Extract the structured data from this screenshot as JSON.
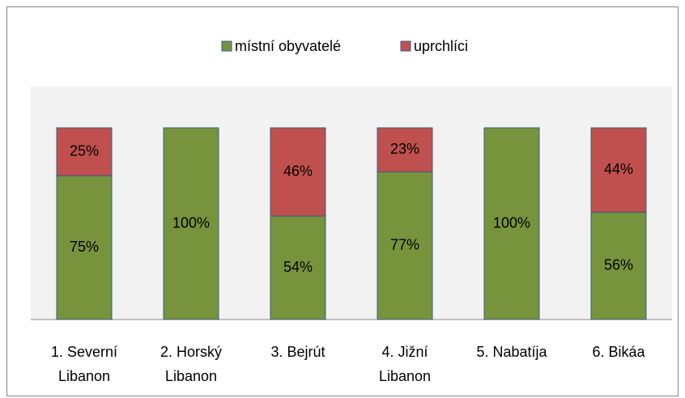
{
  "chart_data": {
    "type": "stacked_bar",
    "categories": [
      "1. Severní\nLibanon",
      "2. Horský\nLibanon",
      "3. Bejrút",
      "4. Jižní\nLibanon",
      "5. Nabatíja",
      "6. Bikáa"
    ],
    "series": [
      {
        "name": "místní obyvatelé",
        "color": "#77933c",
        "values": [
          75,
          100,
          54,
          77,
          100,
          56
        ],
        "value_labels": [
          "75%",
          "100%",
          "54%",
          "77%",
          "100%",
          "56%"
        ]
      },
      {
        "name": "uprchlíci",
        "color": "#c0504d",
        "values": [
          25,
          0,
          46,
          23,
          0,
          44
        ],
        "value_labels": [
          "25%",
          null,
          "46%",
          "23%",
          null,
          "44%"
        ]
      }
    ],
    "ylim": [
      0,
      100
    ],
    "legend": "top"
  }
}
